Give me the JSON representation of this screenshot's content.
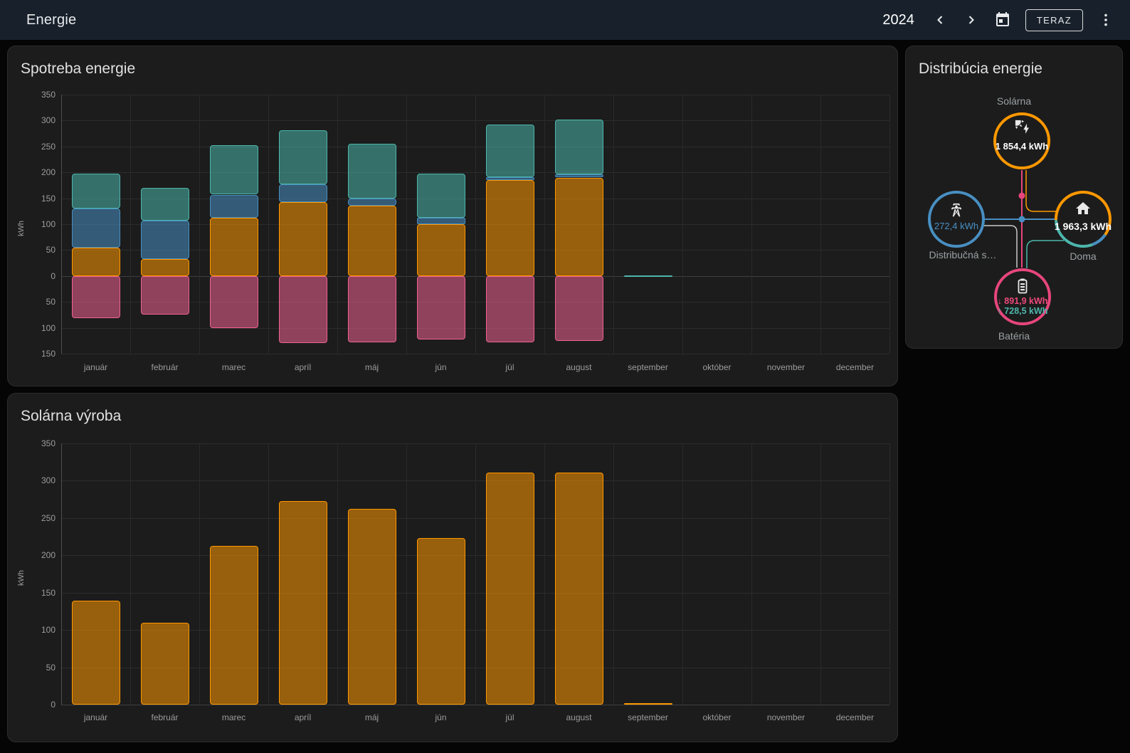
{
  "app_bar": {
    "title": "Energie",
    "year": "2024",
    "now_button": "TERAZ"
  },
  "cards": {
    "distribution": {
      "title": "Distribúcia energie",
      "nodes": {
        "solar": {
          "label": "Solárna",
          "value": "1 854,4 kWh"
        },
        "grid": {
          "label": "Distribučná s…",
          "value": "272,4 kWh"
        },
        "home": {
          "label": "Doma",
          "value": "1 963,3 kWh"
        },
        "battery": {
          "label": "Batéria",
          "arrow_in": "↓",
          "value_in": "891,9 kWh",
          "arrow_out": "↑",
          "value_out": "728,5 kWh"
        }
      }
    }
  },
  "colors": {
    "solar": "#ff9800",
    "grid_blue": "#488fc2",
    "battery_teal": "#4db6ac",
    "returned_pink": "#f06292",
    "battery_ring_pink": "#e8467c",
    "flow_gray": "#cccccc"
  },
  "chart_data": [
    {
      "type": "bar",
      "stacked": true,
      "title": "Spotreba energie",
      "ylabel": "kWh",
      "ylim": [
        -150,
        350
      ],
      "ytick_step": 50,
      "grid": true,
      "legend": "none",
      "ytick_labels": [
        "350",
        "300",
        "250",
        "200",
        "150",
        "100",
        "50",
        "0",
        "50",
        "100",
        "150"
      ],
      "categories": [
        "január",
        "február",
        "marec",
        "apríl",
        "máj",
        "jún",
        "júl",
        "august",
        "september",
        "október",
        "november",
        "december"
      ],
      "series": [
        {
          "name": "solar-consumed",
          "color": "#ff9800",
          "values": [
            55,
            33,
            113,
            142,
            136,
            100,
            185,
            190,
            0,
            0,
            0,
            0
          ]
        },
        {
          "name": "grid-consumed",
          "color": "#488fc2",
          "values": [
            75,
            74,
            44,
            35,
            14,
            13,
            6,
            6,
            0,
            0,
            0,
            0
          ]
        },
        {
          "name": "battery-consumed",
          "color": "#4db6ac",
          "values": [
            68,
            63,
            95,
            104,
            105,
            85,
            102,
            106,
            1,
            0,
            0,
            0
          ]
        },
        {
          "name": "returned-to-grid",
          "color": "#f06292",
          "values": [
            -82,
            -75,
            -100,
            -130,
            -128,
            -122,
            -128,
            -125,
            0,
            0,
            0,
            0
          ]
        }
      ]
    },
    {
      "type": "bar",
      "stacked": false,
      "title": "Solárna výroba",
      "ylabel": "kWh",
      "ylim": [
        0,
        350
      ],
      "ytick_step": 50,
      "grid": true,
      "legend": "none",
      "ytick_labels": [
        "350",
        "300",
        "250",
        "200",
        "150",
        "100",
        "50",
        "0"
      ],
      "categories": [
        "január",
        "február",
        "marec",
        "apríl",
        "máj",
        "jún",
        "júl",
        "august",
        "september",
        "október",
        "november",
        "december"
      ],
      "series": [
        {
          "name": "solar-production",
          "color": "#ff9800",
          "values": [
            139,
            110,
            213,
            273,
            262,
            223,
            311,
            311,
            2,
            0,
            0,
            0
          ]
        }
      ]
    }
  ]
}
